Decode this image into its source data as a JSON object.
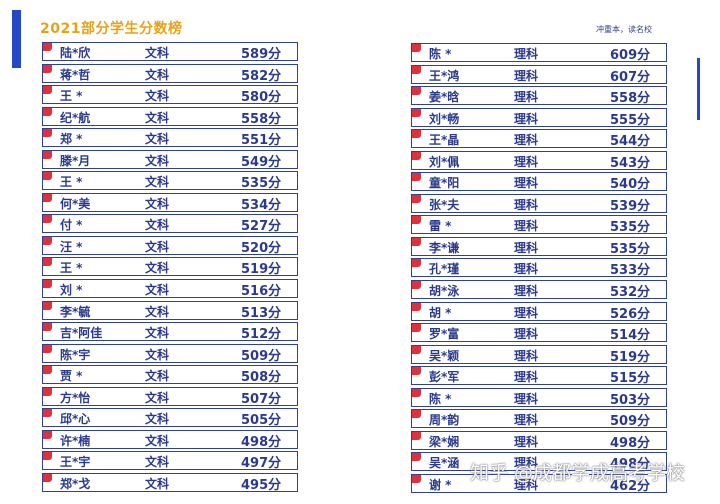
{
  "header": {
    "title": "2021部分学生分数榜",
    "slogan": "冲重本，读名校"
  },
  "left_rows": [
    {
      "name": "陆*欣",
      "subject": "文科",
      "score": "589分"
    },
    {
      "name": "蒋*哲",
      "subject": "文科",
      "score": "582分"
    },
    {
      "name": "王 *",
      "subject": "文科",
      "score": "580分"
    },
    {
      "name": "纪*航",
      "subject": "文科",
      "score": "558分"
    },
    {
      "name": "郑 *",
      "subject": "文科",
      "score": "551分"
    },
    {
      "name": "滕*月",
      "subject": "文科",
      "score": "549分"
    },
    {
      "name": "王 *",
      "subject": "文科",
      "score": "535分"
    },
    {
      "name": "何*美",
      "subject": "文科",
      "score": "534分"
    },
    {
      "name": "付 *",
      "subject": "文科",
      "score": "527分"
    },
    {
      "name": "汪 *",
      "subject": "文科",
      "score": "520分"
    },
    {
      "name": "王 *",
      "subject": "文科",
      "score": "519分"
    },
    {
      "name": "刘 *",
      "subject": "文科",
      "score": "516分"
    },
    {
      "name": "李*毓",
      "subject": "文科",
      "score": "513分"
    },
    {
      "name": "吉*阿佳",
      "subject": "文科",
      "score": "512分"
    },
    {
      "name": "陈*宇",
      "subject": "文科",
      "score": "509分"
    },
    {
      "name": "贾 *",
      "subject": "文科",
      "score": "508分"
    },
    {
      "name": "方*怡",
      "subject": "文科",
      "score": "507分"
    },
    {
      "name": "邱*心",
      "subject": "文科",
      "score": "505分"
    },
    {
      "name": "许*楠",
      "subject": "文科",
      "score": "498分"
    },
    {
      "name": "王*宇",
      "subject": "文科",
      "score": "497分"
    },
    {
      "name": "郑*戈",
      "subject": "文科",
      "score": "495分"
    }
  ],
  "right_rows": [
    {
      "name": "陈 *",
      "subject": "理科",
      "score": "609分"
    },
    {
      "name": "王*鸿",
      "subject": "理科",
      "score": "607分"
    },
    {
      "name": "姜*晗",
      "subject": "理科",
      "score": "558分"
    },
    {
      "name": "刘*畅",
      "subject": "理科",
      "score": "555分"
    },
    {
      "name": "王*晶",
      "subject": "理科",
      "score": "544分"
    },
    {
      "name": "刘*佩",
      "subject": "理科",
      "score": "543分"
    },
    {
      "name": "童*阳",
      "subject": "理科",
      "score": "540分"
    },
    {
      "name": "张*夫",
      "subject": "理科",
      "score": "539分"
    },
    {
      "name": "雷 *",
      "subject": "理科",
      "score": "535分"
    },
    {
      "name": "李*谦",
      "subject": "理科",
      "score": "535分"
    },
    {
      "name": "孔*瑾",
      "subject": "理科",
      "score": "533分"
    },
    {
      "name": "胡*泳",
      "subject": "理科",
      "score": "532分"
    },
    {
      "name": "胡 *",
      "subject": "理科",
      "score": "526分"
    },
    {
      "name": "罗*富",
      "subject": "理科",
      "score": "514分"
    },
    {
      "name": "吴*颖",
      "subject": "理科",
      "score": "519分"
    },
    {
      "name": "彭*军",
      "subject": "理科",
      "score": "515分"
    },
    {
      "name": "陈 *",
      "subject": "理科",
      "score": "503分"
    },
    {
      "name": "周*韵",
      "subject": "理科",
      "score": "509分"
    },
    {
      "name": "梁*娴",
      "subject": "理科",
      "score": "498分"
    },
    {
      "name": "吴*涵",
      "subject": "理科",
      "score": "498分"
    },
    {
      "name": "谢 *",
      "subject": "理科",
      "score": "462分"
    }
  ],
  "watermark": "知乎 @成都学成高考学校",
  "colors": {
    "accent_blue": "#2448c8",
    "title_gold": "#e8a21a",
    "tag_red": "#e0303a",
    "text_navy": "#2b3a8c"
  }
}
